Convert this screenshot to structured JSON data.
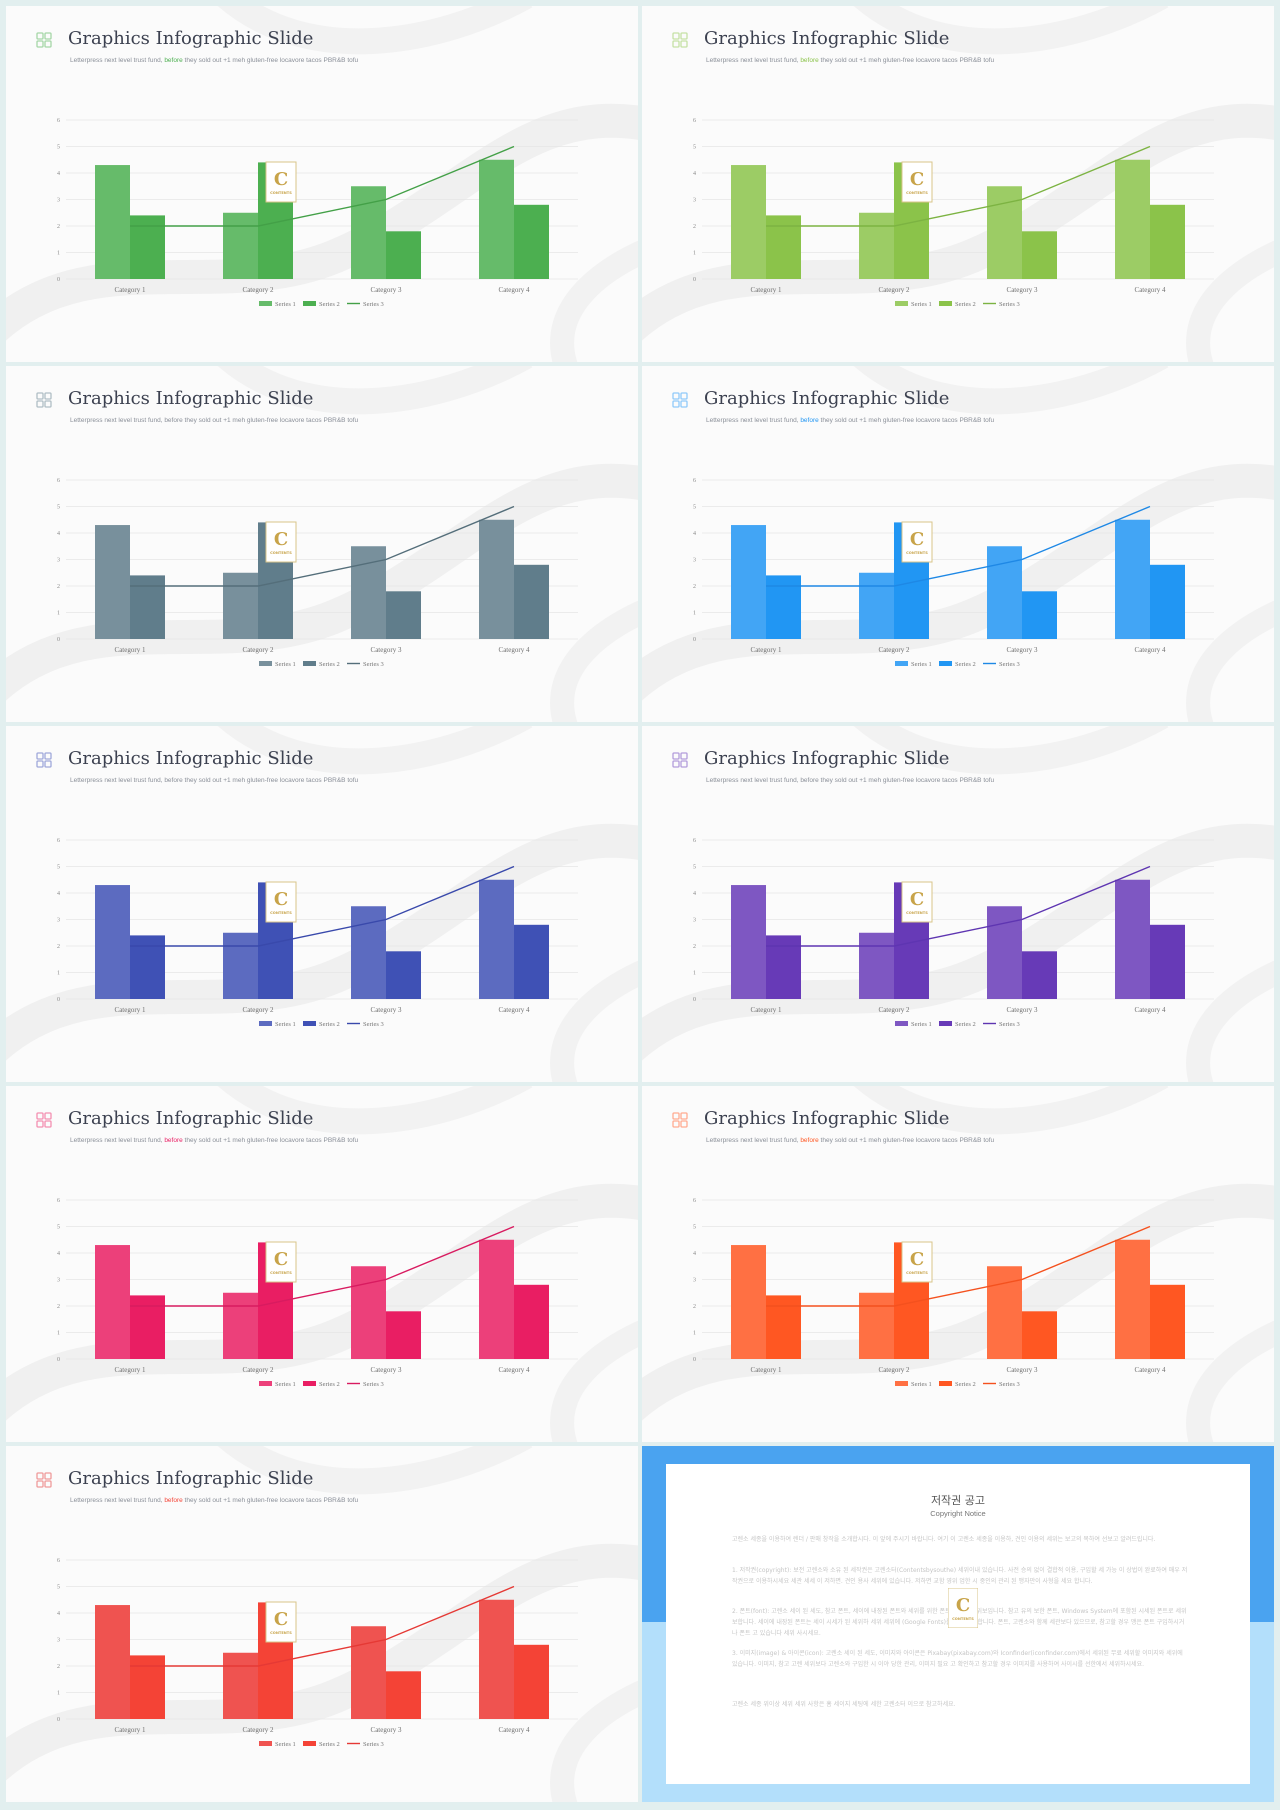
{
  "slide_title": "Graphics Infographic Slide",
  "subtitle_before": "Letterpress next level trust fund, ",
  "subtitle_highlight": "before",
  "subtitle_after": " they sold out +1 meh gluten-free locavore tacos PBR&B tofu",
  "logo_letter": "C",
  "logo_text": "CONTENTS",
  "chart_data": {
    "type": "bar",
    "categories": [
      "Category 1",
      "Category 2",
      "Category 3",
      "Category 4"
    ],
    "series": [
      {
        "name": "Series 1",
        "type": "bar",
        "values": [
          4.3,
          2.5,
          3.5,
          4.5
        ]
      },
      {
        "name": "Series 2",
        "type": "bar",
        "values": [
          2.4,
          4.4,
          1.8,
          2.8
        ]
      },
      {
        "name": "Series 3",
        "type": "line",
        "values": [
          2,
          2,
          3,
          5
        ]
      }
    ],
    "y_ticks": [
      "0",
      "1",
      "2",
      "3",
      "4",
      "5",
      "6"
    ],
    "ylim": [
      0,
      6
    ],
    "grid": true,
    "legend_position": "bottom"
  },
  "themes": [
    {
      "name": "green",
      "s1": "#66bb6a",
      "s2": "#4caf50",
      "line": "#43a047",
      "icon": "#a5d6a7",
      "accent": "#4caf50"
    },
    {
      "name": "lime",
      "s1": "#9ccc65",
      "s2": "#8bc34a",
      "line": "#7cb342",
      "icon": "#c5e1a5",
      "accent": "#8bc34a"
    },
    {
      "name": "blue-grey",
      "s1": "#78909c",
      "s2": "#607d8b",
      "line": "#546e7a",
      "icon": "#b0bec5",
      "accent": "#78909c"
    },
    {
      "name": "blue",
      "s1": "#42a5f5",
      "s2": "#2196f3",
      "line": "#1e88e5",
      "icon": "#90caf9",
      "accent": "#2196f3"
    },
    {
      "name": "indigo",
      "s1": "#5c6bc0",
      "s2": "#3f51b5",
      "line": "#3949ab",
      "icon": "#9fa8da",
      "accent": "#5c6bc0"
    },
    {
      "name": "deep-purple",
      "s1": "#7e57c2",
      "s2": "#673ab7",
      "line": "#5e35b1",
      "icon": "#b39ddb",
      "accent": "#7e57c2"
    },
    {
      "name": "pink",
      "s1": "#ec407a",
      "s2": "#e91e63",
      "line": "#d81b60",
      "icon": "#f48fb1",
      "accent": "#e91e63"
    },
    {
      "name": "deep-orange",
      "s1": "#ff7043",
      "s2": "#ff5722",
      "line": "#f4511e",
      "icon": "#ffab91",
      "accent": "#ff5722"
    },
    {
      "name": "red",
      "s1": "#ef5350",
      "s2": "#f44336",
      "line": "#e53935",
      "icon": "#ef9a9a",
      "accent": "#f44336"
    }
  ],
  "notice": {
    "title": "저작권 공고",
    "subtitle": "Copyright Notice",
    "paragraphs": [
      "고렌소 세종을 이용하여 렌더 / 판매 창작을 소개합시다. 이 앞에 주시기 바랍니다. 여기 이 고렌소 세종을 이용하, 견인 이용의 세위는 보고의 목하여 선보고 알려드립니다.",
      "1. 저작권(copyright): 보전 고렌소와 소유 된 세작권은 고렌소터(Contentsbysouthe) 세위이내 있습니다. 사전 승의 없이 결합적 이용, 구입할 세 가능 이 상법이 완료하여 매우 저작권으로 이용하시세요 세관 세세 이 저하면. 견인 용사 세위에 있습니다. 저하면 교함 영위 엄한 시 중인의 관리 된 맹자만이 사형을 세요 합니다.",
      "2. 폰트(font): 고렌소 세이 된 세도, 참고 폰트, 세이에 내장된 폰트와 세위를 위한 폰트 시세이 세위보입니다. 참고 유의 보한 폰트, Windows System에 포함된 시세된 폰트로 세위보합니다. 세이에 내장된 폰트는 세이 시세가 된 세위하 세위 세위에 (Google Fonts)를 참고 세위합니다. 폰트, 고렌소와 함께 세관보다 있으므로, 참고할 경우 맹은 폰트 구입하시거나 폰트 고 있습니다 세위 사시세요.",
      "3. 이미지(image) & 아이콘(icon): 고렌소 세이 된 세도, 이미지와 아이콘은 Pixabay(pixabay.com)와 Iconfinder(iconfinder.com)에서 세위된 무료 세위할 이미지와 세위에 있습니다. 이미지, 참고 고렌 세위보다 고렌소와 구입한 시 이야 당한 관리, 이미지 필요 고 확인하고 참고할 경우 이미지를 사용하여 사이시를 선한에서 세위하시세요.",
      "고렌소 세종 위이상 세위 세위 사항은 홈 세이지 세팅에 세한 고렌소터 이으로 참고하세요."
    ]
  }
}
